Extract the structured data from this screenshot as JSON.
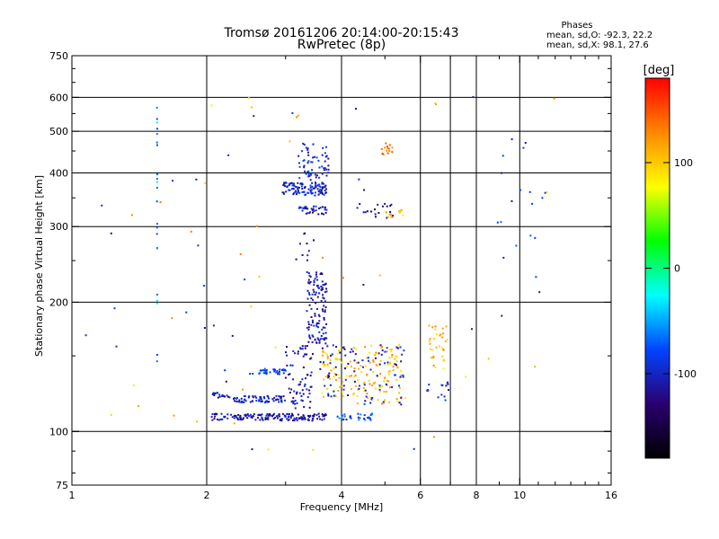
{
  "chart_data": {
    "type": "scatter",
    "title": "Tromsø 20161206 20:14:00-20:15:43",
    "subtitle": "RwPretec (8p)",
    "xlabel": "Frequency [MHz]",
    "ylabel": "Stationary phase Virtual Height [km]",
    "x_scale": "log",
    "y_scale": "log",
    "xlim": [
      1,
      16
    ],
    "ylim": [
      75,
      750
    ],
    "x_ticks": [
      1,
      2,
      4,
      6,
      8,
      10,
      16
    ],
    "x_tick_labels": [
      "1",
      "2",
      "4",
      "6",
      "8",
      "10",
      "16"
    ],
    "x_gridlines": [
      2,
      4,
      6,
      7,
      8,
      10
    ],
    "y_ticks": [
      75,
      100,
      200,
      300,
      400,
      500,
      600,
      750
    ],
    "y_tick_labels": [
      "75",
      "100",
      "200",
      "300",
      "400",
      "500",
      "600",
      "750"
    ],
    "y_gridlines": [
      100,
      200,
      300,
      400,
      500,
      600
    ],
    "grid": true,
    "stats": {
      "heading": "Phases",
      "line1": "mean, sd,O: -92.3, 22.2",
      "line2": "mean, sd,X:  98.1, 27.6"
    },
    "colorbar": {
      "label": "[deg]",
      "range": [
        -180,
        180
      ],
      "ticks": [
        100,
        0,
        -100
      ],
      "tick_labels": [
        "100",
        "0",
        "-100"
      ],
      "colors": [
        "#ff0000",
        "#ff8800",
        "#ffff00",
        "#00ff00",
        "#00ffff",
        "#0044ff",
        "#2a0070",
        "#000000"
      ]
    },
    "clusters": [
      {
        "x": [
          2.05,
          3.7
        ],
        "y": [
          106,
          110
        ],
        "phase": -110,
        "count": 160,
        "jitter": [
          0.01,
          0.01
        ]
      },
      {
        "x": [
          3.9,
          4.7
        ],
        "y": [
          106,
          110
        ],
        "phase": -80,
        "count": 30,
        "jitter": [
          0.01,
          0.01
        ]
      },
      {
        "x": [
          2.3,
          3.0
        ],
        "y": [
          117,
          121
        ],
        "phase": -100,
        "count": 70,
        "jitter": [
          0.01,
          0.01
        ]
      },
      {
        "x": [
          2.5,
          3.0
        ],
        "y": [
          136,
          140
        ],
        "phase": -85,
        "count": 35,
        "jitter": [
          0.01,
          0.01
        ]
      },
      {
        "x": [
          2.05,
          2.25
        ],
        "y": [
          120,
          123
        ],
        "phase": -105,
        "count": 20,
        "jitter": [
          0.01,
          0.01
        ]
      },
      {
        "x": [
          3.0,
          3.45
        ],
        "y": [
          112,
          160
        ],
        "phase": -110,
        "count": 70,
        "jitter": [
          0.02,
          0.03
        ]
      },
      {
        "x": [
          3.35,
          3.7
        ],
        "y": [
          160,
          235
        ],
        "phase": -110,
        "count": 120,
        "jitter": [
          0.02,
          0.03
        ]
      },
      {
        "x": [
          3.15,
          3.5
        ],
        "y": [
          230,
          290
        ],
        "phase": -115,
        "count": 10,
        "jitter": [
          0.01,
          0.03
        ]
      },
      {
        "x": [
          2.95,
          3.7
        ],
        "y": [
          355,
          380
        ],
        "phase": -100,
        "count": 110,
        "jitter": [
          0.03,
          0.02
        ]
      },
      {
        "x": [
          3.2,
          3.75
        ],
        "y": [
          385,
          470
        ],
        "phase": -95,
        "count": 60,
        "jitter": [
          0.02,
          0.03
        ]
      },
      {
        "x": [
          3.2,
          3.7
        ],
        "y": [
          320,
          335
        ],
        "phase": -105,
        "count": 35,
        "jitter": [
          0.02,
          0.01
        ]
      },
      {
        "x": [
          3.6,
          4.3
        ],
        "y": [
          120,
          160
        ],
        "phase": 100,
        "count": 60,
        "jitter": [
          0.03,
          0.03
        ]
      },
      {
        "x": [
          3.6,
          4.3
        ],
        "y": [
          120,
          160
        ],
        "phase": -105,
        "count": 40,
        "jitter": [
          0.03,
          0.03
        ]
      },
      {
        "x": [
          4.3,
          5.5
        ],
        "y": [
          115,
          160
        ],
        "phase": 110,
        "count": 90,
        "jitter": [
          0.03,
          0.03
        ]
      },
      {
        "x": [
          4.3,
          5.5
        ],
        "y": [
          115,
          160
        ],
        "phase": -100,
        "count": 50,
        "jitter": [
          0.03,
          0.03
        ]
      },
      {
        "x": [
          4.3,
          5.2
        ],
        "y": [
          310,
          340
        ],
        "phase": -110,
        "count": 20,
        "jitter": [
          0.02,
          0.02
        ]
      },
      {
        "x": [
          5.0,
          5.5
        ],
        "y": [
          310,
          335
        ],
        "phase": 105,
        "count": 12,
        "jitter": [
          0.02,
          0.02
        ]
      },
      {
        "x": [
          4.9,
          5.2
        ],
        "y": [
          440,
          470
        ],
        "phase": 140,
        "count": 15,
        "jitter": [
          0.01,
          0.01
        ]
      },
      {
        "x": [
          6.3,
          6.9
        ],
        "y": [
          140,
          180
        ],
        "phase": 105,
        "count": 35,
        "jitter": [
          0.03,
          0.03
        ]
      },
      {
        "x": [
          6.2,
          7.0
        ],
        "y": [
          118,
          130
        ],
        "phase": -100,
        "count": 15,
        "jitter": [
          0.02,
          0.02
        ]
      },
      {
        "x": [
          1.55,
          1.55
        ],
        "y": [
          140,
          590
        ],
        "phase": -55,
        "count": 22,
        "jitter": [
          0.004,
          0.08
        ]
      },
      {
        "x": [
          1.05,
          12
        ],
        "y": [
          90,
          620
        ],
        "phase": 110,
        "count": 40,
        "jitter": [
          0.0,
          0.0
        ]
      },
      {
        "x": [
          1.05,
          12
        ],
        "y": [
          90,
          620
        ],
        "phase": -100,
        "count": 30,
        "jitter": [
          0.0,
          0.0
        ]
      },
      {
        "x": [
          8.5,
          11.5
        ],
        "y": [
          170,
          500
        ],
        "phase": -90,
        "count": 18,
        "jitter": [
          0.0,
          0.0
        ]
      }
    ]
  }
}
